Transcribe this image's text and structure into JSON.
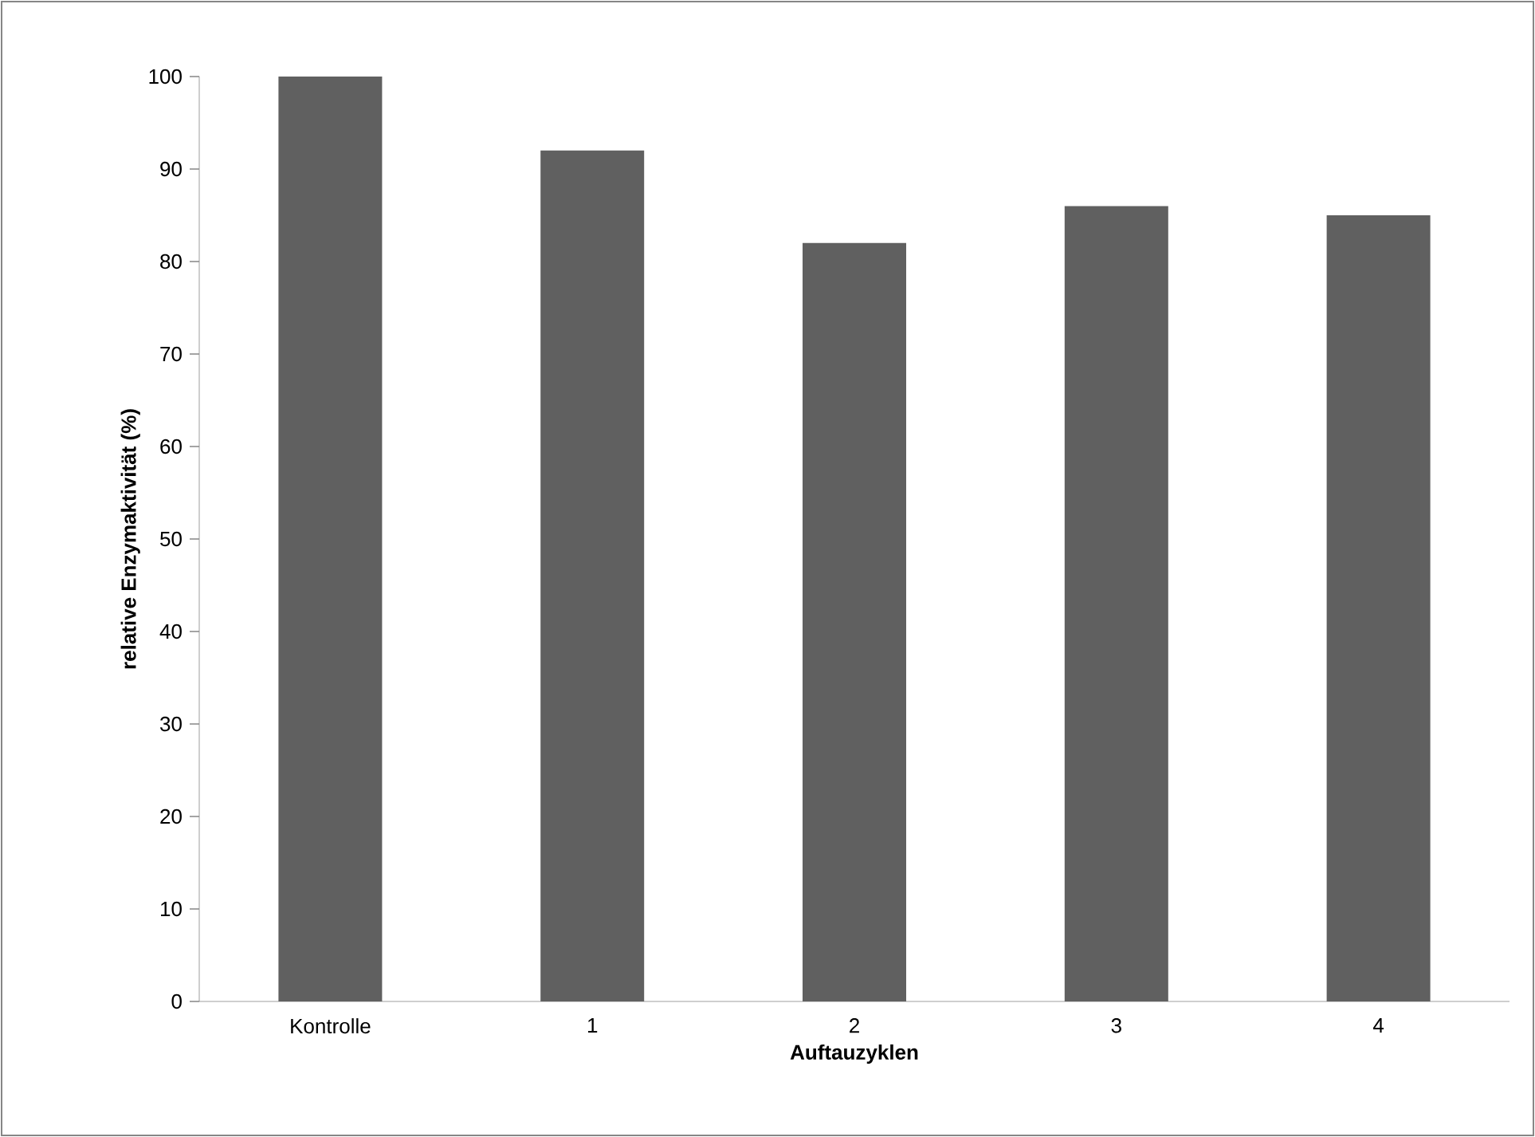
{
  "chart_data": {
    "type": "bar",
    "xlabel": "Auftauzyklen",
    "ylabel": "relative Enzymaktivität (%)",
    "categories": [
      "Kontrolle",
      "1",
      "2",
      "3",
      "4"
    ],
    "values": [
      100,
      92,
      82,
      86,
      85
    ],
    "color": "#606060",
    "ylim": [
      0,
      100
    ],
    "yticks": [
      0,
      10,
      20,
      30,
      40,
      50,
      60,
      70,
      80,
      90,
      100
    ],
    "grid": false
  }
}
